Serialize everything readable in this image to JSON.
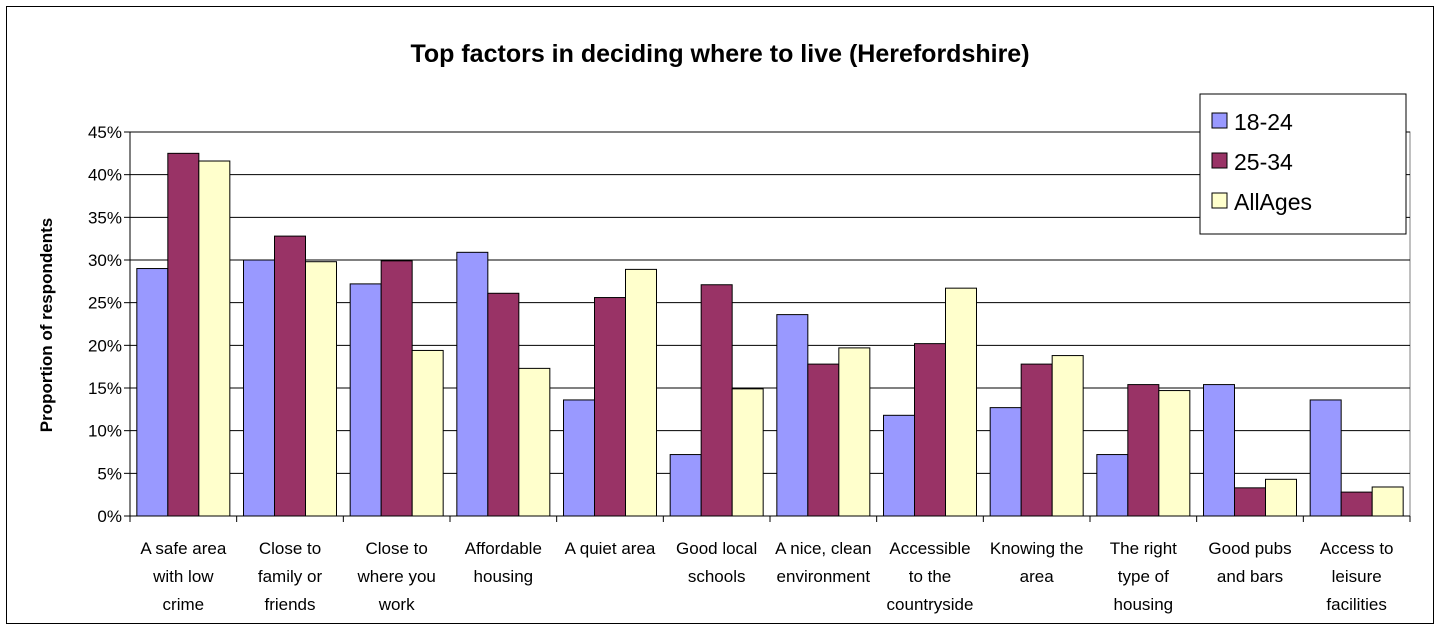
{
  "chart_data": {
    "type": "bar",
    "title": "Top factors in deciding where to live (Herefordshire)",
    "xlabel": "",
    "ylabel": "Proportion of respondents",
    "ylim": [
      0,
      45
    ],
    "y_ticks": [
      "0%",
      "5%",
      "10%",
      "15%",
      "20%",
      "25%",
      "30%",
      "35%",
      "40%",
      "45%"
    ],
    "grid": true,
    "legend_position": "top-right",
    "categories": [
      [
        "A safe area",
        "with low",
        "crime"
      ],
      [
        "Close to",
        "family or",
        "friends"
      ],
      [
        "Close to",
        "where you",
        "work"
      ],
      [
        "Affordable",
        "housing"
      ],
      [
        "A quiet area"
      ],
      [
        "Good local",
        "schools"
      ],
      [
        "A nice, clean",
        "environment"
      ],
      [
        "Accessible",
        "to the",
        "countryside"
      ],
      [
        "Knowing the",
        "area"
      ],
      [
        "The right",
        "type of",
        "housing"
      ],
      [
        "Good pubs",
        "and bars"
      ],
      [
        "Access to",
        "leisure",
        "facilities"
      ]
    ],
    "series": [
      {
        "name": "18-24",
        "color": "#9999ff",
        "values": [
          29,
          30,
          27.2,
          30.9,
          13.6,
          7.2,
          23.6,
          11.8,
          12.7,
          7.2,
          15.4,
          13.6
        ]
      },
      {
        "name": "25-34",
        "color": "#993366",
        "values": [
          42.5,
          32.8,
          29.9,
          26.1,
          25.6,
          27.1,
          17.8,
          20.2,
          17.8,
          15.4,
          3.3,
          2.8
        ]
      },
      {
        "name": "AllAges",
        "color": "#ffffcc",
        "values": [
          41.6,
          29.8,
          19.4,
          17.3,
          28.9,
          14.9,
          19.7,
          26.7,
          18.8,
          14.7,
          4.3,
          3.4
        ]
      }
    ]
  }
}
